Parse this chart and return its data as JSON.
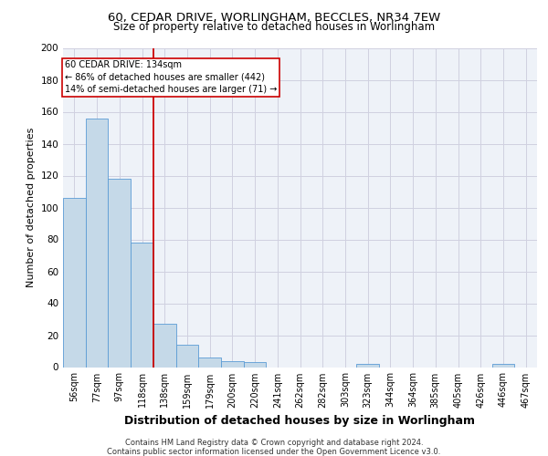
{
  "title_line1": "60, CEDAR DRIVE, WORLINGHAM, BECCLES, NR34 7EW",
  "title_line2": "Size of property relative to detached houses in Worlingham",
  "xlabel": "Distribution of detached houses by size in Worlingham",
  "ylabel": "Number of detached properties",
  "footer_line1": "Contains HM Land Registry data © Crown copyright and database right 2024.",
  "footer_line2": "Contains public sector information licensed under the Open Government Licence v3.0.",
  "bin_labels": [
    "56sqm",
    "77sqm",
    "97sqm",
    "118sqm",
    "138sqm",
    "159sqm",
    "179sqm",
    "200sqm",
    "220sqm",
    "241sqm",
    "262sqm",
    "282sqm",
    "303sqm",
    "323sqm",
    "344sqm",
    "364sqm",
    "385sqm",
    "405sqm",
    "426sqm",
    "446sqm",
    "467sqm"
  ],
  "bar_heights": [
    106,
    156,
    118,
    78,
    27,
    14,
    6,
    4,
    3,
    0,
    0,
    0,
    0,
    2,
    0,
    0,
    0,
    0,
    0,
    2,
    0
  ],
  "bar_color": "#c5d9e8",
  "bar_edge_color": "#5b9bd5",
  "grid_color": "#d0d0e0",
  "vline_color": "#cc0000",
  "vline_pos": 3.5,
  "annotation_title": "60 CEDAR DRIVE: 134sqm",
  "annotation_line2": "← 86% of detached houses are smaller (442)",
  "annotation_line3": "14% of semi-detached houses are larger (71) →",
  "annotation_box_color": "#cc0000",
  "ylim": [
    0,
    200
  ],
  "yticks": [
    0,
    20,
    40,
    60,
    80,
    100,
    120,
    140,
    160,
    180,
    200
  ],
  "bg_color": "#eef2f8",
  "title1_fontsize": 9.5,
  "title2_fontsize": 8.5,
  "ylabel_fontsize": 8,
  "xlabel_fontsize": 9,
  "footer_fontsize": 6,
  "tick_fontsize": 7
}
